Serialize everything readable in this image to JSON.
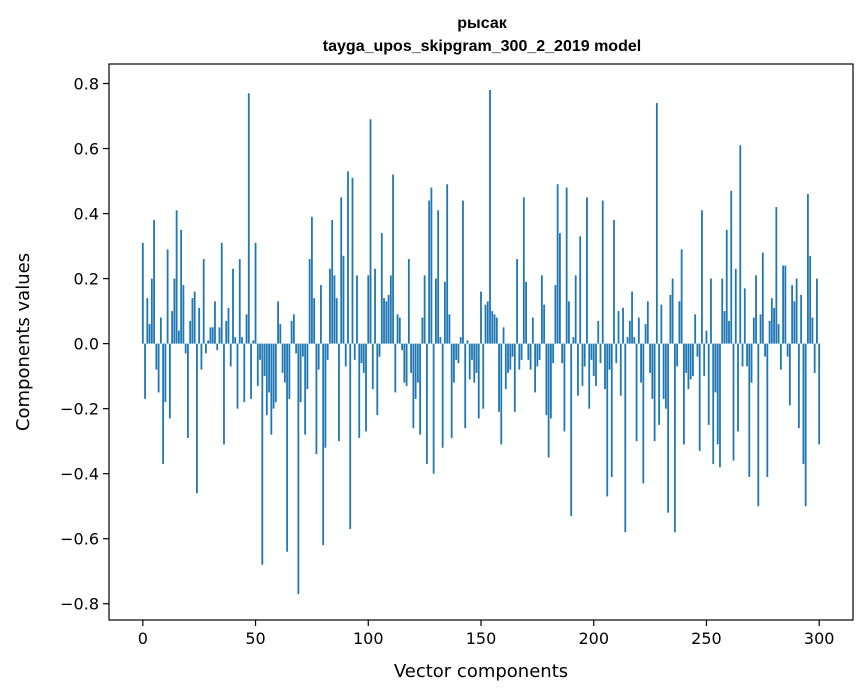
{
  "chart_data": {
    "type": "bar",
    "title_line1": "рысак",
    "title_line2": "tayga_upos_skipgram_300_2_2019 model",
    "xlabel": "Vector components",
    "ylabel": "Components values",
    "xlim": [
      -15,
      315
    ],
    "ylim": [
      -0.85,
      0.86
    ],
    "xticks": [
      0,
      50,
      100,
      150,
      200,
      250,
      300
    ],
    "xtick_labels": [
      "0",
      "50",
      "100",
      "150",
      "200",
      "250",
      "300"
    ],
    "yticks": [
      0.8,
      0.6,
      0.4,
      0.2,
      0.0,
      -0.2,
      -0.4,
      -0.6,
      -0.8
    ],
    "ytick_labels": [
      "0.8",
      "0.6",
      "0.4",
      "0.2",
      "0.0",
      "−0.2",
      "−0.4",
      "−0.6",
      "−0.8"
    ],
    "grid": false,
    "legend": "none",
    "bar_color": "#1f77b4",
    "values": [
      0.31,
      -0.17,
      0.14,
      0.06,
      0.2,
      0.38,
      -0.08,
      -0.15,
      0.08,
      -0.37,
      -0.18,
      0.29,
      -0.23,
      0.1,
      0.2,
      0.41,
      0.04,
      0.35,
      0.18,
      -0.03,
      -0.29,
      0.07,
      0.14,
      0.16,
      -0.46,
      0.11,
      -0.08,
      0.26,
      -0.03,
      0.01,
      0.05,
      0.05,
      0.13,
      -0.02,
      0.05,
      0.31,
      -0.31,
      0.07,
      0.11,
      -0.07,
      0.23,
      0.02,
      -0.2,
      0.26,
      0.02,
      -0.18,
      0.09,
      0.77,
      -0.17,
      0.01,
      0.31,
      -0.13,
      -0.05,
      -0.68,
      -0.1,
      -0.22,
      -0.15,
      -0.28,
      -0.2,
      -0.18,
      0.13,
      0.06,
      -0.09,
      -0.12,
      -0.64,
      -0.17,
      0.07,
      0.09,
      -0.03,
      -0.77,
      -0.18,
      -0.04,
      -0.28,
      -0.14,
      0.26,
      0.39,
      0.14,
      -0.34,
      -0.08,
      0.18,
      -0.62,
      -0.32,
      -0.05,
      0.23,
      0.38,
      0.21,
      0.14,
      -0.3,
      0.45,
      0.27,
      -0.07,
      0.53,
      -0.57,
      0.51,
      -0.05,
      0.21,
      -0.29,
      -0.06,
      -0.09,
      -0.27,
      0.21,
      0.69,
      -0.14,
      0.23,
      -0.22,
      -0.04,
      0.34,
      0.14,
      0.13,
      0.15,
      0.21,
      0.52,
      -0.15,
      0.09,
      0.08,
      -0.02,
      -0.12,
      -0.13,
      0.26,
      -0.09,
      -0.26,
      -0.17,
      -0.12,
      -0.28,
      0.08,
      0.21,
      -0.37,
      0.44,
      0.48,
      -0.4,
      0.2,
      0.41,
      0.02,
      -0.32,
      0.19,
      0.49,
      0.09,
      -0.29,
      -0.12,
      -0.05,
      -0.06,
      0.02,
      0.44,
      -0.26,
      0.01,
      -0.11,
      -0.05,
      -0.12,
      -0.09,
      -0.23,
      0.16,
      -0.2,
      0.12,
      0.13,
      0.78,
      0.1,
      0.09,
      0.08,
      -0.21,
      -0.31,
      0.05,
      -0.14,
      -0.09,
      -0.08,
      -0.04,
      -0.21,
      0.26,
      -0.08,
      -0.05,
      0.45,
      0.19,
      -0.05,
      -0.08,
      0.08,
      -0.15,
      -0.07,
      -0.05,
      0.21,
      0.12,
      -0.22,
      -0.35,
      -0.23,
      -0.06,
      0.18,
      0.49,
      0.34,
      -0.06,
      -0.27,
      0.48,
      0.13,
      -0.53,
      0.02,
      0.21,
      -0.16,
      0.33,
      -0.13,
      -0.07,
      0.45,
      -0.2,
      -0.05,
      -0.1,
      -0.13,
      0.07,
      -0.06,
      0.44,
      -0.14,
      -0.47,
      -0.08,
      -0.41,
      0.38,
      -0.06,
      0.1,
      -0.16,
      0.11,
      -0.58,
      0.02,
      0.07,
      0.16,
      0.02,
      -0.3,
      0.08,
      -0.12,
      -0.43,
      0.06,
      0.13,
      -0.09,
      -0.17,
      -0.3,
      0.74,
      -0.25,
      0.12,
      -0.17,
      -0.2,
      -0.52,
      0.15,
      0.2,
      -0.58,
      -0.07,
      0.13,
      0.29,
      -0.31,
      -0.09,
      -0.14,
      -0.11,
      -0.1,
      0.09,
      -0.04,
      -0.33,
      0.41,
      -0.1,
      0.04,
      -0.25,
      0.2,
      -0.37,
      -0.15,
      -0.31,
      -0.38,
      0.2,
      0.1,
      0.35,
      0.07,
      0.47,
      -0.36,
      0.23,
      -0.27,
      0.61,
      -0.07,
      0.17,
      -0.07,
      -0.41,
      -0.12,
      0.08,
      0.21,
      -0.5,
      0.09,
      0.28,
      -0.04,
      -0.41,
      0.07,
      0.14,
      0.11,
      0.42,
      0.06,
      -0.08,
      0.24,
      0.24,
      -0.04,
      -0.19,
      0.18,
      0.13,
      0.2,
      -0.26,
      0.15,
      -0.37,
      -0.5,
      0.46,
      0.27,
      0.08,
      -0.09,
      0.2,
      -0.31
    ]
  }
}
